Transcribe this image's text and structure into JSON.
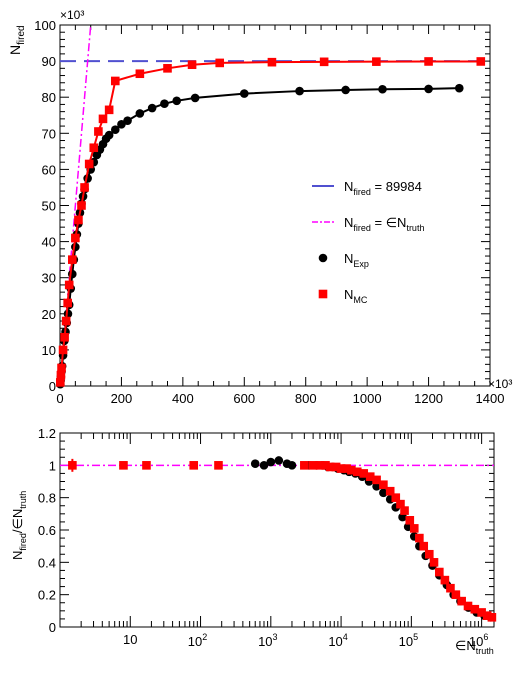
{
  "colors": {
    "exp": "#000000",
    "mc": "#ff0000",
    "sat_line": "#5050d0",
    "lin_line": "#ff00ff",
    "ratio_line": "#ff00ff"
  },
  "chart_data": [
    {
      "type": "scatter",
      "panel": "top",
      "ylabel_main": "N",
      "ylabel_sub": "fired",
      "xlim": [
        0,
        1400000
      ],
      "ylim": [
        0,
        100000
      ],
      "x_ticks": [
        0,
        200,
        400,
        600,
        800,
        1000,
        1200,
        1400
      ],
      "y_ticks": [
        0,
        10,
        20,
        30,
        40,
        50,
        60,
        70,
        80,
        90,
        100
      ],
      "x_multiplier": "×10³",
      "y_multiplier": "×10³",
      "legend_placement": "right",
      "legend": [
        {
          "main": "N",
          "sub": "fired",
          "rest": " = 89984",
          "marker": "dash-line",
          "color": "#5050d0"
        },
        {
          "main": "N",
          "sub": "fired",
          "rest": " = ∈N",
          "sub2": "truth",
          "marker": "dashdot-line",
          "color": "#ff00ff"
        },
        {
          "main": "N",
          "sub": "Exp",
          "rest": "",
          "marker": "circle",
          "color": "#000000"
        },
        {
          "main": "N",
          "sub": "MC",
          "rest": "",
          "marker": "square",
          "color": "#ff0000"
        }
      ],
      "saturation_line": {
        "y": 89984
      },
      "linear_line": {
        "slope": 1.0
      },
      "series": [
        {
          "name": "N_Exp",
          "marker": "circle",
          "color": "#000000",
          "x": [
            1000,
            2000,
            3000,
            5000,
            7000,
            10000,
            14000,
            18000,
            22000,
            26000,
            30000,
            35000,
            40000,
            45000,
            50000,
            55000,
            60000,
            65000,
            70000,
            75000,
            80000,
            90000,
            100000,
            110000,
            120000,
            130000,
            140000,
            150000,
            160000,
            180000,
            200000,
            220000,
            260000,
            300000,
            340000,
            380000,
            440000,
            600000,
            780000,
            930000,
            1050000,
            1200000,
            1300000
          ],
          "y": [
            500,
            1500,
            2500,
            4000,
            5500,
            8500,
            12500,
            15000,
            17500,
            20000,
            22500,
            27000,
            31000,
            35000,
            38500,
            42000,
            45000,
            48000,
            50500,
            52500,
            54500,
            57500,
            60000,
            62000,
            64000,
            65500,
            67000,
            68500,
            69500,
            71000,
            72500,
            73500,
            75500,
            77000,
            78200,
            79000,
            79800,
            81000,
            81700,
            82000,
            82200,
            82300,
            82500
          ]
        },
        {
          "name": "N_MC",
          "marker": "square",
          "color": "#ff0000",
          "x": [
            1000,
            3000,
            5000,
            10000,
            15000,
            20000,
            25000,
            30000,
            40000,
            50000,
            60000,
            70000,
            80000,
            95000,
            110000,
            125000,
            140000,
            160000,
            180000,
            260000,
            350000,
            430000,
            520000,
            690000,
            860000,
            1030000,
            1200000,
            1370000
          ],
          "y": [
            1000,
            3000,
            5000,
            10000,
            13500,
            18000,
            23000,
            28000,
            35000,
            41000,
            46000,
            50000,
            55000,
            61500,
            66000,
            70500,
            74000,
            76500,
            84500,
            86500,
            88000,
            89000,
            89500,
            89700,
            89800,
            89850,
            89900,
            89900
          ]
        }
      ]
    },
    {
      "type": "scatter",
      "panel": "bottom",
      "ylabel_main": "N",
      "ylabel_sub": "fired",
      "ylabel_mid": "/∈N",
      "ylabel_sub2": "truth",
      "xlabel_main": "∈N",
      "xlabel_sub": "truth",
      "x_scale": "log",
      "xlim": [
        1,
        1500000
      ],
      "ylim": [
        0,
        1.2
      ],
      "x_ticks": [
        10,
        100,
        1000,
        10000,
        100000,
        1000000
      ],
      "y_ticks": [
        0,
        0.2,
        0.4,
        0.6,
        0.8,
        1,
        1.2
      ],
      "reference_line": {
        "y": 1.0
      },
      "series": [
        {
          "name": "N_Exp",
          "marker": "circle",
          "color": "#000000",
          "x": [
            600,
            800,
            1000,
            1300,
            1700,
            2000,
            3500,
            4500,
            5500,
            6500,
            7500,
            9000,
            11000,
            13000,
            16000,
            20000,
            25000,
            32000,
            40000,
            50000,
            60000,
            75000,
            90000,
            110000,
            130000,
            160000,
            200000,
            250000,
            320000,
            400000,
            500000,
            650000,
            850000,
            1100000,
            1350000
          ],
          "y": [
            1.01,
            1.0,
            1.02,
            1.03,
            1.01,
            1.0,
            1.0,
            1.0,
            1.0,
            0.99,
            0.99,
            0.98,
            0.97,
            0.96,
            0.95,
            0.93,
            0.9,
            0.87,
            0.83,
            0.79,
            0.74,
            0.68,
            0.62,
            0.56,
            0.5,
            0.44,
            0.38,
            0.32,
            0.26,
            0.2,
            0.16,
            0.12,
            0.09,
            0.07,
            0.06
          ]
        },
        {
          "name": "N_MC",
          "marker": "square",
          "color": "#ff0000",
          "x": [
            1.5,
            8,
            17,
            80,
            180,
            3000,
            4000,
            5000,
            6000,
            7000,
            8500,
            10000,
            12000,
            14000,
            17000,
            21000,
            26000,
            32000,
            40000,
            50000,
            60000,
            70000,
            80000,
            95000,
            110000,
            130000,
            150000,
            180000,
            210000,
            250000,
            300000,
            360000,
            430000,
            520000,
            640000,
            800000,
            1000000,
            1200000,
            1400000
          ],
          "y": [
            1.0,
            1.0,
            1.0,
            1.0,
            1.0,
            1.0,
            1.0,
            1.0,
            1.0,
            0.99,
            0.99,
            0.98,
            0.98,
            0.97,
            0.96,
            0.95,
            0.93,
            0.91,
            0.88,
            0.84,
            0.8,
            0.76,
            0.72,
            0.66,
            0.61,
            0.55,
            0.5,
            0.45,
            0.4,
            0.34,
            0.29,
            0.24,
            0.2,
            0.16,
            0.13,
            0.11,
            0.09,
            0.07,
            0.06
          ]
        }
      ]
    }
  ]
}
